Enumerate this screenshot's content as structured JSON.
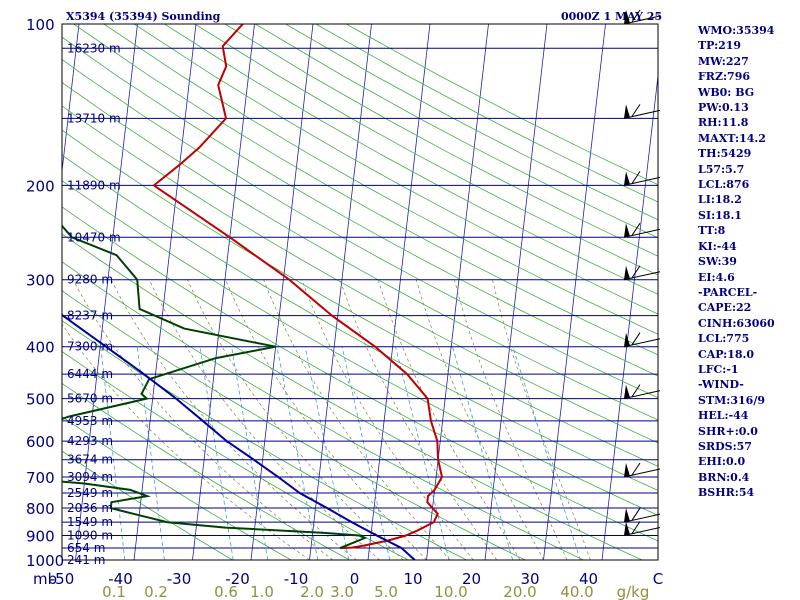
{
  "header": {
    "title": "X5394 (35394) Sounding",
    "time": "0000Z  1 MAY 25"
  },
  "indices": [
    "WMO:35394",
    "TP:219",
    "MW:227",
    "FRZ:796",
    "WB0: BG",
    "PW:0.13",
    "RH:11.8",
    "MAXT:14.2",
    "TH:5429",
    "L57:5.7",
    "LCL:876",
    "LI:18.2",
    "SI:18.1",
    "TT:8",
    "KI:-44",
    "SW:39",
    "EI:4.6",
    "-PARCEL-",
    "CAPE:22",
    "CINH:63060",
    "LCL:775",
    "CAP:18.0",
    "LFC:-1",
    "-WIND-",
    "STM:316/9",
    "HEL:-44",
    "SHR+:0.0",
    "SRDS:57",
    "EHI:0.0",
    "BRN:0.4",
    "BSHR:54"
  ],
  "chart_data": {
    "type": "skew-t log-p sounding",
    "y_axis": {
      "label": "mb",
      "scale": "log",
      "range": [
        1000,
        100
      ],
      "ticks": [
        100,
        200,
        300,
        400,
        500,
        600,
        700,
        800,
        900,
        1000
      ]
    },
    "x_axis": {
      "label": "C",
      "range": [
        -50,
        50
      ],
      "ticks": [
        "-50",
        "-40",
        "-30",
        "-20",
        "-10",
        "0",
        "10",
        "20",
        "30",
        "40"
      ]
    },
    "mixing_ratio_axis": {
      "label": "g/kg",
      "ticks": [
        "0.1",
        "0.2",
        "0.6",
        "1.0",
        "2.0",
        "3.0",
        "5.0",
        "10.0",
        "20.0",
        "40.0"
      ]
    },
    "height_levels": [
      {
        "p": 111,
        "label": "16230 m"
      },
      {
        "p": 150,
        "label": "13710 m"
      },
      {
        "p": 200,
        "label": "11890 m"
      },
      {
        "p": 250,
        "label": "10470 m"
      },
      {
        "p": 300,
        "label": "9280 m"
      },
      {
        "p": 350,
        "label": "8237 m"
      },
      {
        "p": 400,
        "label": "7300 m"
      },
      {
        "p": 450,
        "label": "6444 m"
      },
      {
        "p": 500,
        "label": "5670 m"
      },
      {
        "p": 550,
        "label": "4953 m"
      },
      {
        "p": 600,
        "label": "4293 m"
      },
      {
        "p": 650,
        "label": "3674 m"
      },
      {
        "p": 700,
        "label": "3094 m"
      },
      {
        "p": 750,
        "label": "2549 m"
      },
      {
        "p": 800,
        "label": "2036 m"
      },
      {
        "p": 850,
        "label": "1549 m"
      },
      {
        "p": 900,
        "label": "1090 m"
      },
      {
        "p": 950,
        "label": "654 m"
      },
      {
        "p": 1000,
        "label": "241 m"
      }
    ],
    "series": [
      {
        "name": "",
        "color": "#c00000",
        "points": [
          [
            950,
            -5
          ],
          [
            948,
            -3
          ],
          [
            940,
            -1
          ],
          [
            920,
            3
          ],
          [
            900,
            6
          ],
          [
            880,
            8
          ],
          [
            850,
            10.5
          ],
          [
            820,
            11
          ],
          [
            800,
            10
          ],
          [
            780,
            9
          ],
          [
            760,
            9
          ],
          [
            740,
            10
          ],
          [
            700,
            11
          ],
          [
            650,
            10
          ],
          [
            600,
            9.5
          ],
          [
            550,
            8
          ],
          [
            500,
            7
          ],
          [
            450,
            3
          ],
          [
            400,
            -3
          ],
          [
            350,
            -11
          ],
          [
            300,
            -19
          ],
          [
            250,
            -30
          ],
          [
            200,
            -44
          ],
          [
            183,
            -40
          ],
          [
            170,
            -37
          ],
          [
            150,
            -33
          ],
          [
            130,
            -35
          ],
          [
            120,
            -34
          ],
          [
            110,
            -35
          ],
          [
            100,
            -32
          ]
        ]
      },
      {
        "name": "",
        "color": "#004000",
        "points": [
          [
            950,
            -5
          ],
          [
            930,
            -3
          ],
          [
            910,
            -1
          ],
          [
            900,
            -2
          ],
          [
            890,
            -8
          ],
          [
            870,
            -25
          ],
          [
            850,
            -35
          ],
          [
            820,
            -41
          ],
          [
            800,
            -45
          ],
          [
            780,
            -45
          ],
          [
            760,
            -39
          ],
          [
            740,
            -42
          ],
          [
            720,
            -50
          ],
          [
            700,
            -63
          ],
          [
            680,
            -67
          ],
          [
            660,
            -69
          ],
          [
            640,
            -64
          ],
          [
            620,
            -63
          ],
          [
            600,
            -61
          ],
          [
            580,
            -58
          ],
          [
            560,
            -58
          ],
          [
            540,
            -54
          ],
          [
            500,
            -41
          ],
          [
            490,
            -42
          ],
          [
            460,
            -41
          ],
          [
            420,
            -30
          ],
          [
            400,
            -20
          ],
          [
            370,
            -36
          ],
          [
            340,
            -44
          ],
          [
            300,
            -45
          ],
          [
            270,
            -49
          ],
          [
            250,
            -57
          ],
          [
            220,
            -62
          ],
          [
            200,
            -67
          ],
          [
            180,
            -67
          ],
          [
            150,
            -65
          ],
          [
            140,
            -66
          ],
          [
            120,
            -67
          ],
          [
            110,
            -67
          ],
          [
            100,
            -68
          ]
        ]
      },
      {
        "name": "",
        "color": "#0000a0",
        "points": [
          [
            1000,
            8
          ],
          [
            950,
            5.5
          ],
          [
            900,
            1
          ],
          [
            850,
            -3.5
          ],
          [
            800,
            -8
          ],
          [
            750,
            -13
          ],
          [
            700,
            -17
          ],
          [
            650,
            -21.5
          ],
          [
            600,
            -26.5
          ],
          [
            550,
            -31
          ],
          [
            500,
            -36
          ],
          [
            450,
            -42
          ],
          [
            400,
            -49
          ],
          [
            350,
            -57
          ],
          [
            300,
            -66
          ],
          [
            250,
            -75
          ],
          [
            200,
            -86
          ],
          [
            150,
            -98
          ],
          [
            120,
            -107
          ]
        ]
      }
    ],
    "wind_barbs_mb": [
      100,
      150,
      200,
      250,
      300,
      400,
      500,
      700,
      850,
      900
    ]
  }
}
